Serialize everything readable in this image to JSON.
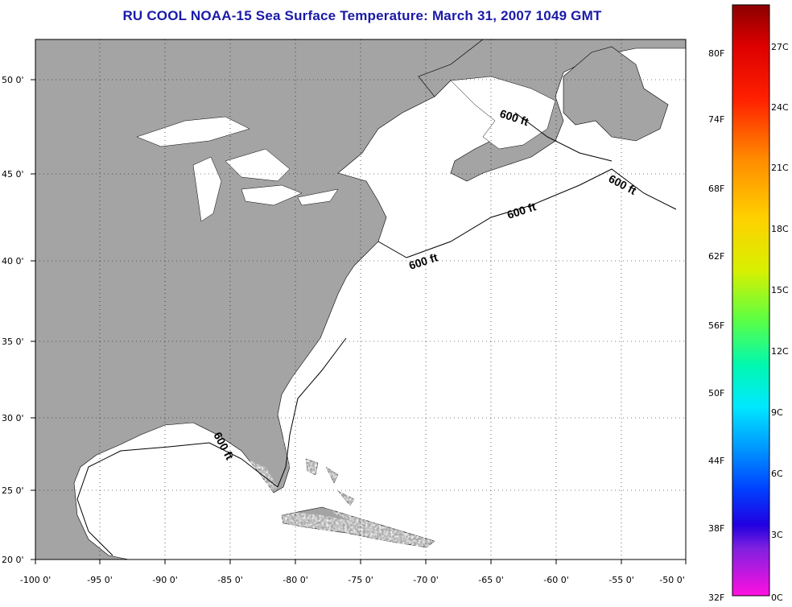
{
  "title": "RU COOL  NOAA-15  Sea Surface Temperature:  March 31, 2007 1049 GMT",
  "map": {
    "lon_labels": [
      "-100 0'",
      "-95 0'",
      "-90 0'",
      "-85 0'",
      "-80 0'",
      "-75 0'",
      "-70 0'",
      "-65 0'",
      "-60 0'",
      "-55 0'",
      "-50 0'"
    ],
    "lat_labels": [
      "50 0'",
      "45 0'",
      "40 0'",
      "35 0'",
      "30 0'",
      "25 0'",
      "20 0'"
    ],
    "contour_labels": [
      "600 ft",
      "600 ft",
      "600 ft",
      "600 ft",
      "600 ft"
    ],
    "colors": {
      "land": "#a4a4a4",
      "water": "#ffffff",
      "title": "#1a1aa8"
    }
  },
  "colorbar": {
    "fahrenheit": [
      "80F",
      "74F",
      "68F",
      "62F",
      "56F",
      "50F",
      "44F",
      "38F",
      "32F"
    ],
    "celsius": [
      "27C",
      "24C",
      "21C",
      "18C",
      "15C",
      "12C",
      "9C",
      "6C",
      "3C",
      "0C"
    ]
  }
}
